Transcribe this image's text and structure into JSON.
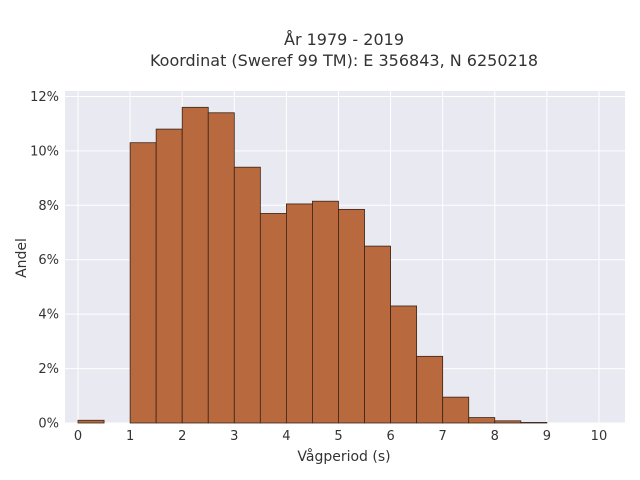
{
  "chart_data": {
    "type": "bar",
    "title_line1": "År 1979 - 2019",
    "title_line2": "Koordinat (Sweref 99 TM): E 356843, N 6250218",
    "xlabel": "Vågperiod (s)",
    "ylabel": "Andel",
    "xlim": [
      -0.25,
      10.5
    ],
    "ylim": [
      0,
      12.2
    ],
    "x_ticks": [
      0,
      1,
      2,
      3,
      4,
      5,
      6,
      7,
      8,
      9,
      10
    ],
    "x_tick_labels": [
      "0",
      "1",
      "2",
      "3",
      "4",
      "5",
      "6",
      "7",
      "8",
      "9",
      "10"
    ],
    "y_ticks": [
      0,
      2,
      4,
      6,
      8,
      10,
      12
    ],
    "y_tick_labels": [
      "0%",
      "2%",
      "4%",
      "6%",
      "8%",
      "10%",
      "12%"
    ],
    "bin_width": 0.5,
    "bins": [
      {
        "x0": 0.0,
        "value": 0.1
      },
      {
        "x0": 0.5,
        "value": 0.0
      },
      {
        "x0": 1.0,
        "value": 10.3
      },
      {
        "x0": 1.5,
        "value": 10.8
      },
      {
        "x0": 2.0,
        "value": 11.6
      },
      {
        "x0": 2.5,
        "value": 11.4
      },
      {
        "x0": 3.0,
        "value": 9.4
      },
      {
        "x0": 3.5,
        "value": 7.7
      },
      {
        "x0": 4.0,
        "value": 8.05
      },
      {
        "x0": 4.5,
        "value": 8.15
      },
      {
        "x0": 5.0,
        "value": 7.85
      },
      {
        "x0": 5.5,
        "value": 6.5
      },
      {
        "x0": 6.0,
        "value": 4.3
      },
      {
        "x0": 6.5,
        "value": 2.45
      },
      {
        "x0": 7.0,
        "value": 0.95
      },
      {
        "x0": 7.5,
        "value": 0.2
      },
      {
        "x0": 8.0,
        "value": 0.08
      },
      {
        "x0": 8.5,
        "value": 0.02
      }
    ],
    "grid": true,
    "colors": {
      "bar_fill": "#b8693e",
      "bar_stroke": "#3a2418",
      "plot_bg": "#e9e9f1",
      "grid": "#ffffff"
    }
  }
}
